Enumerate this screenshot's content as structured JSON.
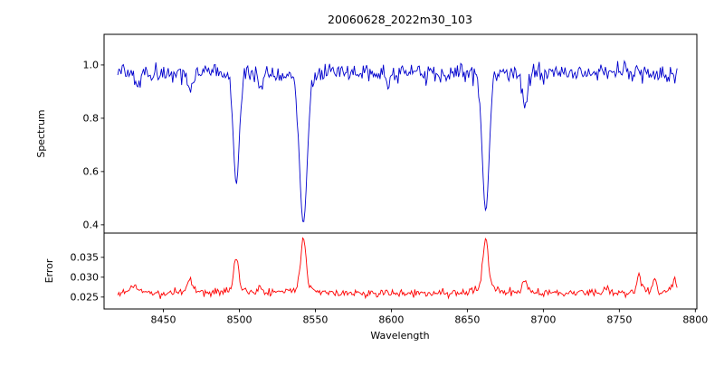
{
  "figure": {
    "background": "#ffffff"
  },
  "chart_data": {
    "type": "line",
    "title": "20060628_2022m30_103",
    "xlabel": "Wavelength",
    "legend": "none",
    "grid": false,
    "seed": 20060628,
    "x_axis": {
      "lim": [
        8411,
        8801
      ],
      "ticks": [
        8450,
        8500,
        8550,
        8600,
        8650,
        8700,
        8750,
        8800
      ],
      "tick_labels": [
        "8450",
        "8500",
        "8550",
        "8600",
        "8650",
        "8700",
        "8750",
        "8800"
      ],
      "data_range": [
        8420,
        8788
      ]
    },
    "panels": [
      {
        "name": "spectrum",
        "ylabel": "Spectrum",
        "color": "#0000cd",
        "ylim": [
          0.369,
          1.115
        ],
        "yticks": [
          0.4,
          0.6,
          0.8,
          1.0
        ],
        "ytick_labels": [
          "0.4",
          "0.6",
          "0.8",
          "1.0"
        ],
        "model": {
          "points": 500,
          "continuum": 0.985,
          "noise_up": 0.013,
          "noise_down": 0.018,
          "dip_prob": 0.03,
          "dip_extra": 0.05,
          "absorption_lines": [
            {
              "center": 8498.0,
              "depth": 0.43,
              "width": 2.0
            },
            {
              "center": 8542.1,
              "depth": 0.575,
              "width": 2.6
            },
            {
              "center": 8662.1,
              "depth": 0.53,
              "width": 2.3
            },
            {
              "center": 8467.5,
              "depth": 0.07,
              "width": 1.8
            },
            {
              "center": 8514.0,
              "depth": 0.05,
              "width": 1.5
            },
            {
              "center": 8598.0,
              "depth": 0.045,
              "width": 1.3
            },
            {
              "center": 8688.0,
              "depth": 0.14,
              "width": 1.7
            },
            {
              "center": 8433.0,
              "depth": 0.05,
              "width": 1.5
            }
          ]
        }
      },
      {
        "name": "error",
        "ylabel": "Error",
        "color": "#ff0000",
        "ylim": [
          0.022,
          0.0411
        ],
        "yticks": [
          0.025,
          0.03,
          0.035
        ],
        "ytick_labels": [
          "0.025",
          "0.030",
          "0.035"
        ],
        "model": {
          "points": 500,
          "baseline": 0.0257,
          "noise": 0.00045,
          "spikes": [
            {
              "center": 8431.0,
              "amp": 0.0018,
              "width": 2.0
            },
            {
              "center": 8467.5,
              "amp": 0.0028,
              "width": 1.8
            },
            {
              "center": 8498.0,
              "amp": 0.0078,
              "width": 1.6
            },
            {
              "center": 8514.0,
              "amp": 0.0012,
              "width": 1.5
            },
            {
              "center": 8542.1,
              "amp": 0.0124,
              "width": 1.7
            },
            {
              "center": 8662.1,
              "amp": 0.0122,
              "width": 1.7
            },
            {
              "center": 8688.0,
              "amp": 0.0028,
              "width": 1.6
            },
            {
              "center": 8741.0,
              "amp": 0.0015,
              "width": 1.5
            },
            {
              "center": 8763.0,
              "amp": 0.0042,
              "width": 1.4
            },
            {
              "center": 8773.0,
              "amp": 0.0028,
              "width": 1.3
            },
            {
              "center": 8786.0,
              "amp": 0.003,
              "width": 1.5
            }
          ]
        }
      }
    ]
  }
}
